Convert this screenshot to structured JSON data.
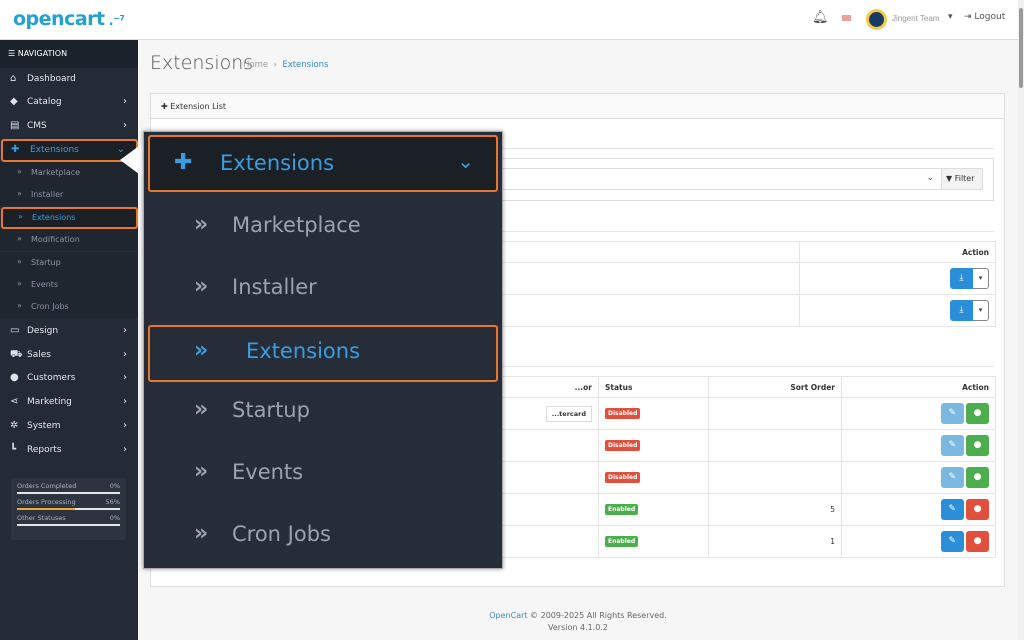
{
  "header": {
    "logo": "opencart",
    "user": "Jingent Team",
    "logout": "Logout"
  },
  "nav": {
    "title": "NAVIGATION",
    "items": [
      {
        "label": "Dashboard",
        "icon": "home"
      },
      {
        "label": "Catalog",
        "icon": "tag"
      },
      {
        "label": "CMS",
        "icon": "newspaper"
      },
      {
        "label": "Extensions",
        "icon": "puzzle"
      }
    ],
    "sub": [
      "Marketplace",
      "Installer",
      "Extensions",
      "Modification",
      "Startup",
      "Events",
      "Cron Jobs"
    ],
    "items2": [
      {
        "label": "Design",
        "icon": "desktop"
      },
      {
        "label": "Sales",
        "icon": "cart"
      },
      {
        "label": "Customers",
        "icon": "user"
      },
      {
        "label": "Marketing",
        "icon": "share"
      },
      {
        "label": "System",
        "icon": "gear"
      },
      {
        "label": "Reports",
        "icon": "chart"
      }
    ],
    "stats": [
      {
        "label": "Orders Completed",
        "value": "0%",
        "pct": 0
      },
      {
        "label": "Orders Processing",
        "value": "56%",
        "pct": 56
      },
      {
        "label": "Other Statuses",
        "value": "0%",
        "pct": 0
      }
    ]
  },
  "page": {
    "title": "Extensions",
    "breadcrumb": [
      "Home",
      "Extensions"
    ],
    "card_title": "Extension List",
    "filter": "Filter"
  },
  "table1": {
    "header": "Action"
  },
  "table2": {
    "headers": [
      "...or",
      "Status",
      "Sort Order",
      "Action"
    ],
    "rows": [
      {
        "vendor": "...tercard",
        "status": "Disabled",
        "sort": ""
      },
      {
        "status": "Disabled",
        "sort": ""
      },
      {
        "status": "Disabled",
        "sort": ""
      },
      {
        "status": "Enabled",
        "sort": "5"
      },
      {
        "status": "Enabled",
        "sort": "1"
      }
    ]
  },
  "popup": {
    "header": "Extensions",
    "items": [
      "Marketplace",
      "Installer",
      "Extensions",
      "Startup",
      "Events",
      "Cron Jobs"
    ]
  },
  "footer": {
    "link": "OpenCart",
    "copy": " © 2009-2025 All Rights Reserved.",
    "version": "Version 4.1.0.2"
  },
  "colors": {
    "accent": "#23a1d1",
    "highlight": "#e8762d",
    "enabled": "#4cae4c",
    "disabled": "#e0503d"
  }
}
